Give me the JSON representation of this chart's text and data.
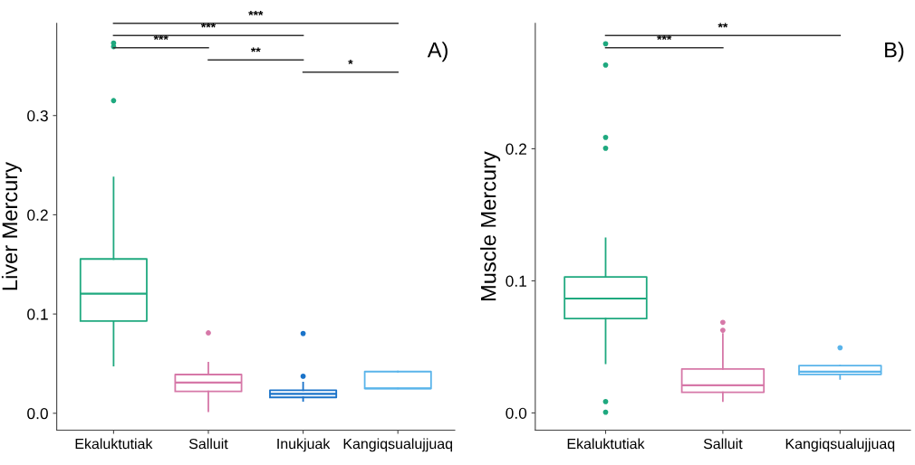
{
  "chart_data": [
    {
      "type": "box",
      "title": "A)",
      "ylabel": "Liver Mercury",
      "categories": [
        "Ekaluktutiak",
        "Salluit",
        "Inukjuak",
        "Kangiqsualujjuaq"
      ],
      "colors": [
        "#1fa97f",
        "#d678a8",
        "#1a73c9",
        "#5ab4ea"
      ],
      "boxes": [
        {
          "low": 0.048,
          "q1": 0.093,
          "median": 0.1205,
          "q3": 0.1555,
          "high": 0.2375,
          "outliers": [
            0.315,
            0.3695,
            0.373
          ]
        },
        {
          "low": 0.002,
          "q1": 0.022,
          "median": 0.031,
          "q3": 0.039,
          "high": 0.051,
          "outliers": [
            0.081
          ]
        },
        {
          "low": 0.0126,
          "q1": 0.016,
          "median": 0.0195,
          "q3": 0.0232,
          "high": 0.031,
          "outliers": [
            0.0373,
            0.0804
          ]
        },
        {
          "low": 0.025,
          "q1": 0.025,
          "median": 0.025,
          "q3": 0.042,
          "high": 0.042
        }
      ],
      "ylim": [
        -0.017,
        0.393
      ],
      "yticks": [
        {
          "value": 0,
          "label": "0.0"
        },
        0.1,
        0.2,
        0.3
      ],
      "grid": false,
      "annotations": [
        "***",
        "***",
        "***",
        "**",
        "*"
      ]
    },
    {
      "type": "box",
      "title": "B)",
      "ylabel": "Muscle Mercury",
      "categories": [
        "Ekaluktutiak",
        "Salluit",
        "Kangiqsualujjuaq"
      ],
      "colors": [
        "#1fa97f",
        "#d678a8",
        "#5ab4ea"
      ],
      "boxes": [
        {
          "low": 0.0376,
          "q1": 0.0714,
          "median": 0.0866,
          "q3": 0.103,
          "high": 0.1323,
          "outliers": [
            0.0006,
            0.0086,
            0.2004,
            0.2086,
            0.2634,
            0.2795
          ]
        },
        {
          "low": 0.009,
          "q1": 0.0157,
          "median": 0.021,
          "q3": 0.0333,
          "high": 0.0598,
          "outliers": [
            0.0626,
            0.0686
          ]
        },
        {
          "low": 0.0258,
          "q1": 0.0292,
          "median": 0.0312,
          "q3": 0.0359,
          "high": 0.0359,
          "outliers": [
            0.0494
          ]
        }
      ],
      "ylim": [
        -0.013,
        0.295
      ],
      "yticks": [
        {
          "value": 0,
          "label": "0.0"
        },
        0.1,
        0.2
      ],
      "grid": false,
      "annotations": [
        "**",
        "***"
      ]
    }
  ]
}
